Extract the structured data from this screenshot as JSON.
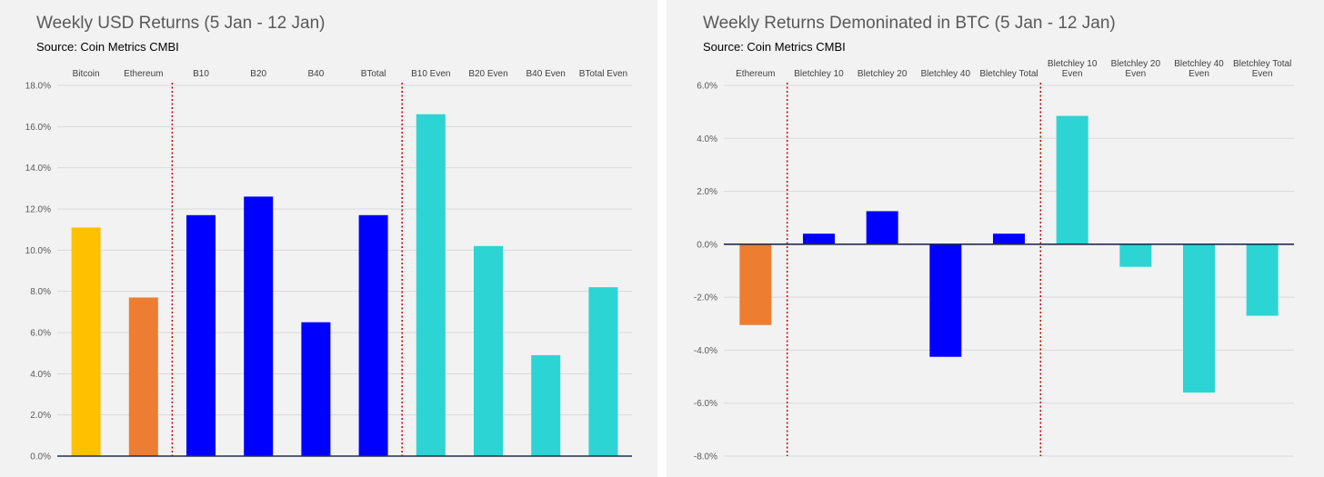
{
  "charts": [
    {
      "title": "Weekly USD Returns (5 Jan - 12 Jan)",
      "subtitle": "Source: Coin Metrics CMBI"
    },
    {
      "title": "Weekly Returns Demoninated in BTC (5 Jan - 12 Jan)",
      "subtitle": "Source: Coin Metrics CMBI"
    }
  ],
  "chart_data": [
    {
      "type": "bar",
      "title": "Weekly USD Returns (5 Jan - 12 Jan)",
      "subtitle": "Source: Coin Metrics CMBI",
      "categories": [
        "Bitcoin",
        "Ethereum",
        "B10",
        "B20",
        "B40",
        "BTotal",
        "B10 Even",
        "B20 Even",
        "B40 Even",
        "BTotal Even"
      ],
      "values": [
        11.1,
        7.7,
        11.7,
        12.6,
        6.5,
        11.7,
        16.6,
        10.2,
        4.9,
        8.2
      ],
      "colors": [
        "#ffc000",
        "#ed7d31",
        "#0000ff",
        "#0000ff",
        "#0000ff",
        "#0000ff",
        "#2dd4d4",
        "#2dd4d4",
        "#2dd4d4",
        "#2dd4d4"
      ],
      "ylim": [
        0,
        18
      ],
      "yticks": [
        "0.0%",
        "2.0%",
        "4.0%",
        "6.0%",
        "8.0%",
        "10.0%",
        "12.0%",
        "14.0%",
        "16.0%",
        "18.0%"
      ],
      "ytick_values": [
        0,
        2,
        4,
        6,
        8,
        10,
        12,
        14,
        16,
        18
      ],
      "category_labels_position": "top",
      "grid": true,
      "separators_after_index": [
        1,
        5
      ],
      "separator_color": "#c00000"
    },
    {
      "type": "bar",
      "title": "Weekly Returns Demoninated in BTC (5 Jan - 12 Jan)",
      "subtitle": "Source: Coin Metrics CMBI",
      "categories": [
        "Ethereum",
        "Bletchley 10",
        "Bletchley 20",
        "Bletchley 40",
        "Bletchley Total",
        "Bletchley 10 Even",
        "Bletchley 20 Even",
        "Bletchley 40 Even",
        "Bletchley Total Even"
      ],
      "category_lines": [
        [
          "Ethereum"
        ],
        [
          "Bletchley 10"
        ],
        [
          "Bletchley 20"
        ],
        [
          "Bletchley 40"
        ],
        [
          "Bletchley Total"
        ],
        [
          "Bletchley 10",
          "Even"
        ],
        [
          "Bletchley 20",
          "Even"
        ],
        [
          "Bletchley 40",
          "Even"
        ],
        [
          "Bletchley Total",
          "Even"
        ]
      ],
      "values": [
        -3.05,
        0.4,
        1.25,
        -4.25,
        0.4,
        4.85,
        -0.85,
        -5.6,
        -2.7
      ],
      "colors": [
        "#ed7d31",
        "#0000ff",
        "#0000ff",
        "#0000ff",
        "#0000ff",
        "#2dd4d4",
        "#2dd4d4",
        "#2dd4d4",
        "#2dd4d4"
      ],
      "ylim": [
        -8,
        6
      ],
      "yticks": [
        "-8.0%",
        "-6.0%",
        "-4.0%",
        "-2.0%",
        "0.0%",
        "2.0%",
        "4.0%",
        "6.0%"
      ],
      "ytick_values": [
        -8,
        -6,
        -4,
        -2,
        0,
        2,
        4,
        6
      ],
      "category_labels_position": "top",
      "grid": true,
      "separators_after_index": [
        0,
        4
      ],
      "separator_color": "#c00000"
    }
  ]
}
